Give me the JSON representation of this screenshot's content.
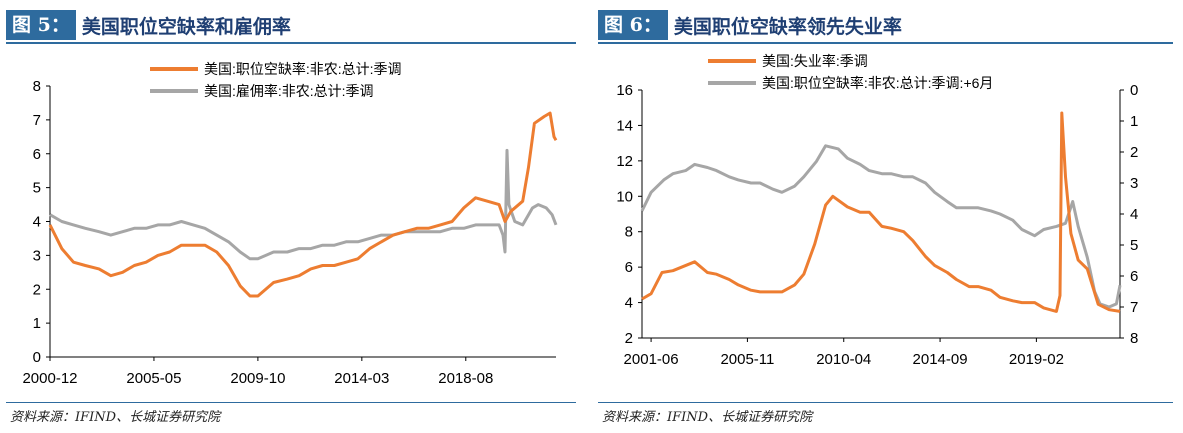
{
  "charts": [
    {
      "tag": "图 5：",
      "title": "美国职位空缺率和雇佣率",
      "source": "资料来源：IFIND、长城证券研究院"
    },
    {
      "tag": "图 6：",
      "title": "美国职位空缺率领先失业率",
      "source": "资料来源：IFIND、长城证券研究院"
    }
  ],
  "colors": {
    "orange": "#ed7d31",
    "gray": "#a6a6a6",
    "accent": "#2e6b9e"
  },
  "chart_data": [
    {
      "type": "line",
      "title": "美国职位空缺率和雇佣率",
      "xlabel": "",
      "ylabel": "",
      "x_tick_labels": [
        "2000-12",
        "2005-05",
        "2009-10",
        "2014-03",
        "2018-08"
      ],
      "xlim": [
        "2000-12",
        "2022-06"
      ],
      "ylim": [
        0,
        8
      ],
      "y_ticks": [
        0,
        1,
        2,
        3,
        4,
        5,
        6,
        7,
        8
      ],
      "legend": "top-center",
      "grid": false,
      "series": [
        {
          "name": "美国:职位空缺率:非农:总计:季调",
          "color": "#ed7d31",
          "points": [
            [
              "2000-12",
              3.9
            ],
            [
              "2001-06",
              3.2
            ],
            [
              "2001-12",
              2.8
            ],
            [
              "2002-06",
              2.7
            ],
            [
              "2003-01",
              2.6
            ],
            [
              "2003-07",
              2.4
            ],
            [
              "2004-01",
              2.5
            ],
            [
              "2004-07",
              2.7
            ],
            [
              "2005-01",
              2.8
            ],
            [
              "2005-07",
              3.0
            ],
            [
              "2006-01",
              3.1
            ],
            [
              "2006-07",
              3.3
            ],
            [
              "2007-01",
              3.3
            ],
            [
              "2007-07",
              3.3
            ],
            [
              "2008-01",
              3.1
            ],
            [
              "2008-07",
              2.7
            ],
            [
              "2009-01",
              2.1
            ],
            [
              "2009-06",
              1.8
            ],
            [
              "2009-10",
              1.8
            ],
            [
              "2010-06",
              2.2
            ],
            [
              "2011-01",
              2.3
            ],
            [
              "2011-07",
              2.4
            ],
            [
              "2012-01",
              2.6
            ],
            [
              "2012-07",
              2.7
            ],
            [
              "2013-01",
              2.7
            ],
            [
              "2013-07",
              2.8
            ],
            [
              "2014-01",
              2.9
            ],
            [
              "2014-07",
              3.2
            ],
            [
              "2015-01",
              3.4
            ],
            [
              "2015-07",
              3.6
            ],
            [
              "2016-01",
              3.7
            ],
            [
              "2016-07",
              3.8
            ],
            [
              "2017-01",
              3.8
            ],
            [
              "2017-07",
              3.9
            ],
            [
              "2018-01",
              4.0
            ],
            [
              "2018-07",
              4.4
            ],
            [
              "2019-01",
              4.7
            ],
            [
              "2019-07",
              4.6
            ],
            [
              "2020-01",
              4.5
            ],
            [
              "2020-04",
              4.0
            ],
            [
              "2020-07",
              4.3
            ],
            [
              "2021-01",
              4.6
            ],
            [
              "2021-04",
              5.6
            ],
            [
              "2021-07",
              6.9
            ],
            [
              "2021-12",
              7.1
            ],
            [
              "2022-03",
              7.2
            ],
            [
              "2022-05",
              6.5
            ],
            [
              "2022-06",
              6.4
            ]
          ]
        },
        {
          "name": "美国:雇佣率:非农:总计:季调",
          "color": "#a6a6a6",
          "points": [
            [
              "2000-12",
              4.2
            ],
            [
              "2001-06",
              4.0
            ],
            [
              "2001-12",
              3.9
            ],
            [
              "2002-06",
              3.8
            ],
            [
              "2003-01",
              3.7
            ],
            [
              "2003-07",
              3.6
            ],
            [
              "2004-01",
              3.7
            ],
            [
              "2004-07",
              3.8
            ],
            [
              "2005-01",
              3.8
            ],
            [
              "2005-07",
              3.9
            ],
            [
              "2006-01",
              3.9
            ],
            [
              "2006-07",
              4.0
            ],
            [
              "2007-01",
              3.9
            ],
            [
              "2007-07",
              3.8
            ],
            [
              "2008-01",
              3.6
            ],
            [
              "2008-07",
              3.4
            ],
            [
              "2009-01",
              3.1
            ],
            [
              "2009-06",
              2.9
            ],
            [
              "2009-10",
              2.9
            ],
            [
              "2010-06",
              3.1
            ],
            [
              "2011-01",
              3.1
            ],
            [
              "2011-07",
              3.2
            ],
            [
              "2012-01",
              3.2
            ],
            [
              "2012-07",
              3.3
            ],
            [
              "2013-01",
              3.3
            ],
            [
              "2013-07",
              3.4
            ],
            [
              "2014-01",
              3.4
            ],
            [
              "2014-07",
              3.5
            ],
            [
              "2015-01",
              3.6
            ],
            [
              "2015-07",
              3.6
            ],
            [
              "2016-01",
              3.7
            ],
            [
              "2016-07",
              3.7
            ],
            [
              "2017-01",
              3.7
            ],
            [
              "2017-07",
              3.7
            ],
            [
              "2018-01",
              3.8
            ],
            [
              "2018-07",
              3.8
            ],
            [
              "2019-01",
              3.9
            ],
            [
              "2019-07",
              3.9
            ],
            [
              "2020-01",
              3.9
            ],
            [
              "2020-03",
              3.6
            ],
            [
              "2020-04",
              3.1
            ],
            [
              "2020-05",
              6.1
            ],
            [
              "2020-06",
              4.5
            ],
            [
              "2020-09",
              4.0
            ],
            [
              "2021-01",
              3.9
            ],
            [
              "2021-06",
              4.4
            ],
            [
              "2021-09",
              4.5
            ],
            [
              "2022-01",
              4.4
            ],
            [
              "2022-04",
              4.2
            ],
            [
              "2022-06",
              3.9
            ]
          ]
        }
      ]
    },
    {
      "type": "line",
      "title": "美国职位空缺率领先失业率",
      "xlabel": "",
      "ylabel": "",
      "x_tick_labels": [
        "2001-06",
        "2005-11",
        "2010-04",
        "2014-09",
        "2019-02"
      ],
      "xlim": [
        "2001-01",
        "2022-12"
      ],
      "y_left": {
        "ylim": [
          2,
          16
        ],
        "ticks": [
          2,
          4,
          6,
          8,
          10,
          12,
          14,
          16
        ]
      },
      "y_right": {
        "ylim": [
          0,
          8
        ],
        "ticks": [
          0,
          1,
          2,
          3,
          4,
          5,
          6,
          7,
          8
        ],
        "inverted": true
      },
      "legend": "top-center",
      "grid": false,
      "series": [
        {
          "name": "美国:失业率:季调",
          "axis": "left",
          "color": "#ed7d31",
          "points": [
            [
              "2001-01",
              4.2
            ],
            [
              "2001-06",
              4.5
            ],
            [
              "2001-12",
              5.7
            ],
            [
              "2002-06",
              5.8
            ],
            [
              "2003-06",
              6.3
            ],
            [
              "2004-01",
              5.7
            ],
            [
              "2004-06",
              5.6
            ],
            [
              "2005-01",
              5.3
            ],
            [
              "2005-06",
              5.0
            ],
            [
              "2006-01",
              4.7
            ],
            [
              "2006-06",
              4.6
            ],
            [
              "2007-01",
              4.6
            ],
            [
              "2007-06",
              4.6
            ],
            [
              "2008-01",
              5.0
            ],
            [
              "2008-06",
              5.6
            ],
            [
              "2008-12",
              7.3
            ],
            [
              "2009-06",
              9.5
            ],
            [
              "2009-10",
              10.0
            ],
            [
              "2010-06",
              9.4
            ],
            [
              "2011-01",
              9.1
            ],
            [
              "2011-06",
              9.1
            ],
            [
              "2012-01",
              8.3
            ],
            [
              "2012-06",
              8.2
            ],
            [
              "2013-01",
              8.0
            ],
            [
              "2013-06",
              7.5
            ],
            [
              "2014-01",
              6.6
            ],
            [
              "2014-06",
              6.1
            ],
            [
              "2015-01",
              5.7
            ],
            [
              "2015-06",
              5.3
            ],
            [
              "2016-01",
              4.9
            ],
            [
              "2016-06",
              4.9
            ],
            [
              "2017-01",
              4.7
            ],
            [
              "2017-06",
              4.3
            ],
            [
              "2018-01",
              4.1
            ],
            [
              "2018-06",
              4.0
            ],
            [
              "2019-01",
              4.0
            ],
            [
              "2019-06",
              3.7
            ],
            [
              "2020-01",
              3.5
            ],
            [
              "2020-03",
              4.4
            ],
            [
              "2020-04",
              14.7
            ],
            [
              "2020-06",
              11.1
            ],
            [
              "2020-09",
              7.9
            ],
            [
              "2021-01",
              6.4
            ],
            [
              "2021-06",
              5.9
            ],
            [
              "2021-12",
              3.9
            ],
            [
              "2022-06",
              3.6
            ],
            [
              "2022-12",
              3.5
            ]
          ]
        },
        {
          "name": "美国:职位空缺率:非农:总计:季调:+6月",
          "axis": "right",
          "color": "#a6a6a6",
          "points": [
            [
              "2001-01",
              3.9
            ],
            [
              "2001-06",
              3.3
            ],
            [
              "2002-01",
              2.9
            ],
            [
              "2002-06",
              2.7
            ],
            [
              "2003-01",
              2.6
            ],
            [
              "2003-06",
              2.4
            ],
            [
              "2004-01",
              2.5
            ],
            [
              "2004-06",
              2.6
            ],
            [
              "2005-01",
              2.8
            ],
            [
              "2005-06",
              2.9
            ],
            [
              "2006-01",
              3.0
            ],
            [
              "2006-06",
              3.0
            ],
            [
              "2007-01",
              3.2
            ],
            [
              "2007-06",
              3.3
            ],
            [
              "2008-01",
              3.1
            ],
            [
              "2008-06",
              2.8
            ],
            [
              "2009-01",
              2.3
            ],
            [
              "2009-06",
              1.8
            ],
            [
              "2010-01",
              1.9
            ],
            [
              "2010-06",
              2.2
            ],
            [
              "2011-01",
              2.4
            ],
            [
              "2011-06",
              2.6
            ],
            [
              "2012-01",
              2.7
            ],
            [
              "2012-06",
              2.7
            ],
            [
              "2013-01",
              2.8
            ],
            [
              "2013-06",
              2.8
            ],
            [
              "2014-01",
              3.0
            ],
            [
              "2014-06",
              3.3
            ],
            [
              "2015-01",
              3.6
            ],
            [
              "2015-06",
              3.8
            ],
            [
              "2016-01",
              3.8
            ],
            [
              "2016-06",
              3.8
            ],
            [
              "2017-01",
              3.9
            ],
            [
              "2017-06",
              4.0
            ],
            [
              "2018-01",
              4.2
            ],
            [
              "2018-06",
              4.5
            ],
            [
              "2019-01",
              4.7
            ],
            [
              "2019-06",
              4.5
            ],
            [
              "2020-01",
              4.4
            ],
            [
              "2020-06",
              4.3
            ],
            [
              "2020-10",
              3.6
            ],
            [
              "2021-01",
              4.4
            ],
            [
              "2021-06",
              5.4
            ],
            [
              "2021-10",
              6.5
            ],
            [
              "2022-01",
              6.9
            ],
            [
              "2022-06",
              7.0
            ],
            [
              "2022-10",
              6.9
            ],
            [
              "2022-12",
              6.3
            ]
          ]
        }
      ]
    }
  ]
}
